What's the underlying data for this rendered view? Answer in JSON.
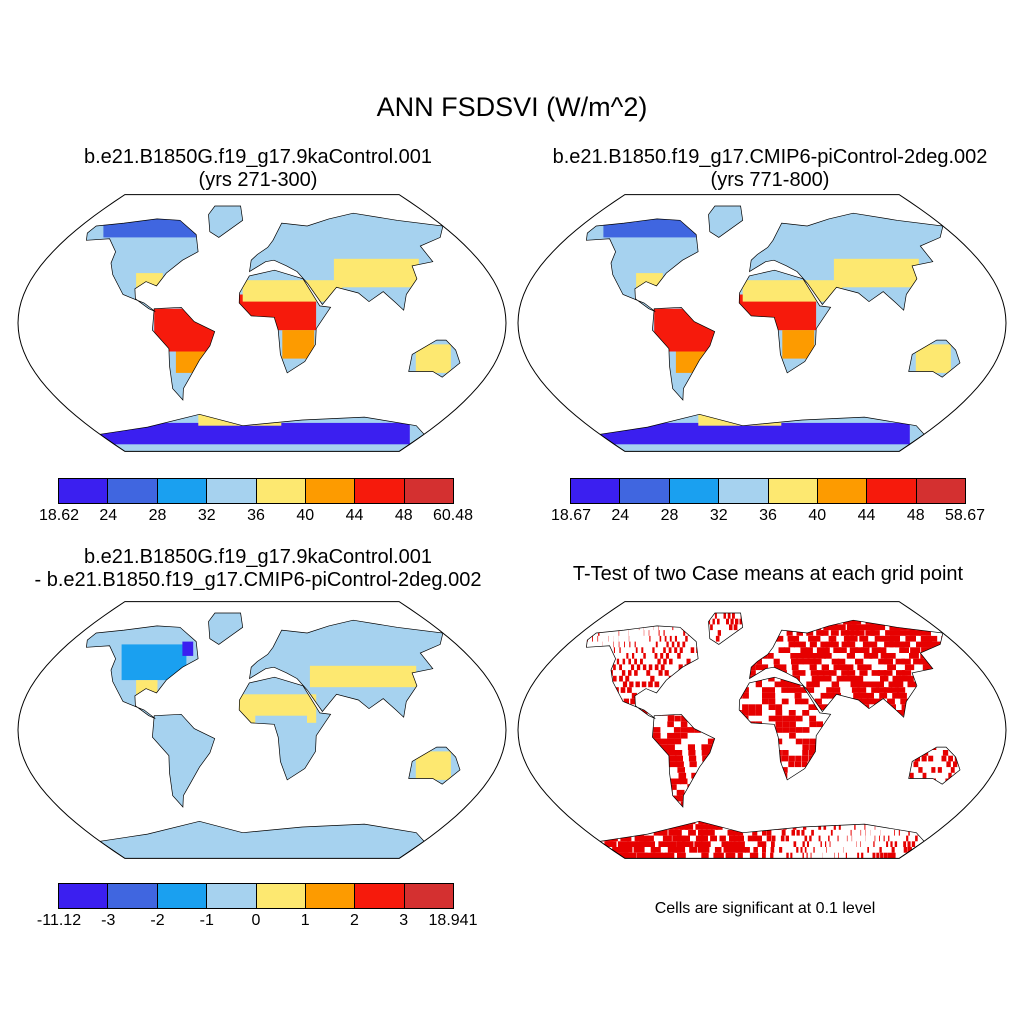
{
  "main_title": "ANN FSDSVI (W/m^2)",
  "panels": [
    {
      "title_line1": "b.e21.B1850G.f19_g17.9kaControl.001",
      "title_line2": "(yrs 271-300)"
    },
    {
      "title_line1": "b.e21.B1850.f19_g17.CMIP6-piControl-2deg.002",
      "title_line2": "(yrs 771-800)"
    },
    {
      "title_line1": "b.e21.B1850G.f19_g17.9kaControl.001",
      "title_line2": "- b.e21.B1850.f19_g17.CMIP6-piControl-2deg.002"
    },
    {
      "title_line1": "T-Test of two Case means at each grid point"
    }
  ],
  "colorbars": [
    {
      "labels": [
        "18.62",
        "24",
        "28",
        "32",
        "36",
        "40",
        "44",
        "48",
        "60.48"
      ]
    },
    {
      "labels": [
        "18.67",
        "24",
        "28",
        "32",
        "36",
        "40",
        "44",
        "48",
        "58.67"
      ]
    },
    {
      "labels": [
        "-11.12",
        "-3",
        "-2",
        "-1",
        "0",
        "1",
        "2",
        "3",
        "18.941"
      ]
    }
  ],
  "colors": {
    "palette": [
      "#3b1ff0",
      "#4066e0",
      "#1aa0f0",
      "#a6d2ef",
      "#fde870",
      "#fd9b00",
      "#f61a0c",
      "#d43030"
    ],
    "significant": "#e60000"
  },
  "note": "Cells are significant at 0.1 level"
}
